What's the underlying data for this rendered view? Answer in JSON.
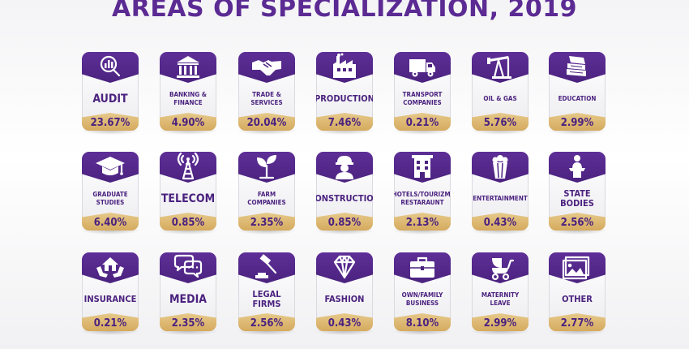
{
  "title": "AREAS OF SPECIALIZATION, 2019",
  "colors": {
    "purple": "#5b2a93",
    "gold": "#d9b06a"
  },
  "chart_data": {
    "type": "table",
    "title": "AREAS OF SPECIALIZATION, 2019",
    "categories": [
      "AUDIT",
      "BANKING & FINANCE",
      "TRADE & SERVICES",
      "PRODUCTION",
      "TRANSPORT COMPANIES",
      "OIL & GAS",
      "EDUCATION",
      "GRADUATE STUDIES",
      "TELECOM",
      "FARM COMPANIES",
      "CONSTRUCTION",
      "HOTELS/TOURIZM/ RESTARAUNT",
      "ENTERTAINMENT",
      "STATE BODIES",
      "INSURANCE",
      "MEDIA",
      "LEGAL FIRMS",
      "FASHION",
      "OWN/FAMILY BUSINESS",
      "MATERNITY LEAVE",
      "OTHER"
    ],
    "values": [
      23.67,
      4.9,
      20.04,
      7.46,
      0.21,
      5.76,
      2.99,
      6.4,
      0.85,
      2.35,
      0.85,
      2.13,
      0.43,
      2.56,
      0.21,
      2.35,
      2.56,
      0.43,
      8.1,
      2.99,
      2.77
    ],
    "unit": "%"
  },
  "cards": [
    {
      "label": "AUDIT",
      "value": "23.67%",
      "icon": "analytics-icon",
      "size": "big"
    },
    {
      "label": "BANKING & FINANCE",
      "value": "4.90%",
      "icon": "bank-icon",
      "size": "small"
    },
    {
      "label": "TRADE & SERVICES",
      "value": "20.04%",
      "icon": "handshake-icon",
      "size": "small"
    },
    {
      "label": "PRODUCTION",
      "value": "7.46%",
      "icon": "factory-icon",
      "size": "mid"
    },
    {
      "label": "TRANSPORT COMPANIES",
      "value": "0.21%",
      "icon": "truck-icon",
      "size": "small"
    },
    {
      "label": "OIL & GAS",
      "value": "5.76%",
      "icon": "oil-pump-icon",
      "size": "small"
    },
    {
      "label": "EDUCATION",
      "value": "2.99%",
      "icon": "books-icon",
      "size": "small"
    },
    {
      "label": "GRADUATE STUDIES",
      "value": "6.40%",
      "icon": "graduation-cap-icon",
      "size": "small"
    },
    {
      "label": "TELECOM",
      "value": "0.85%",
      "icon": "antenna-tower-icon",
      "size": "big"
    },
    {
      "label": "FARM COMPANIES",
      "value": "2.35%",
      "icon": "sprout-icon",
      "size": "small"
    },
    {
      "label": "CONSTRUCTION",
      "value": "0.85%",
      "icon": "builder-icon",
      "size": "mid"
    },
    {
      "label": "HOTELS/TOURIZM/ RESTARAUNT",
      "value": "2.13%",
      "icon": "hotel-icon",
      "size": "small"
    },
    {
      "label": "ENTERTAINMENT",
      "value": "0.43%",
      "icon": "popcorn-icon",
      "size": "small"
    },
    {
      "label": "STATE BODIES",
      "value": "2.56%",
      "icon": "podium-icon",
      "size": "mid"
    },
    {
      "label": "INSURANCE",
      "value": "0.21%",
      "icon": "house-hands-icon",
      "size": "mid"
    },
    {
      "label": "MEDIA",
      "value": "2.35%",
      "icon": "chat-bubbles-icon",
      "size": "big"
    },
    {
      "label": "LEGAL FIRMS",
      "value": "2.56%",
      "icon": "gavel-icon",
      "size": "mid"
    },
    {
      "label": "FASHION",
      "value": "0.43%",
      "icon": "diamond-icon",
      "size": "mid"
    },
    {
      "label": "OWN/FAMILY BUSINESS",
      "value": "8.10%",
      "icon": "briefcase-icon",
      "size": "small"
    },
    {
      "label": "MATERNITY LEAVE",
      "value": "2.99%",
      "icon": "baby-stroller-icon",
      "size": "small"
    },
    {
      "label": "OTHER",
      "value": "2.77%",
      "icon": "picture-icon",
      "size": "mid"
    }
  ]
}
